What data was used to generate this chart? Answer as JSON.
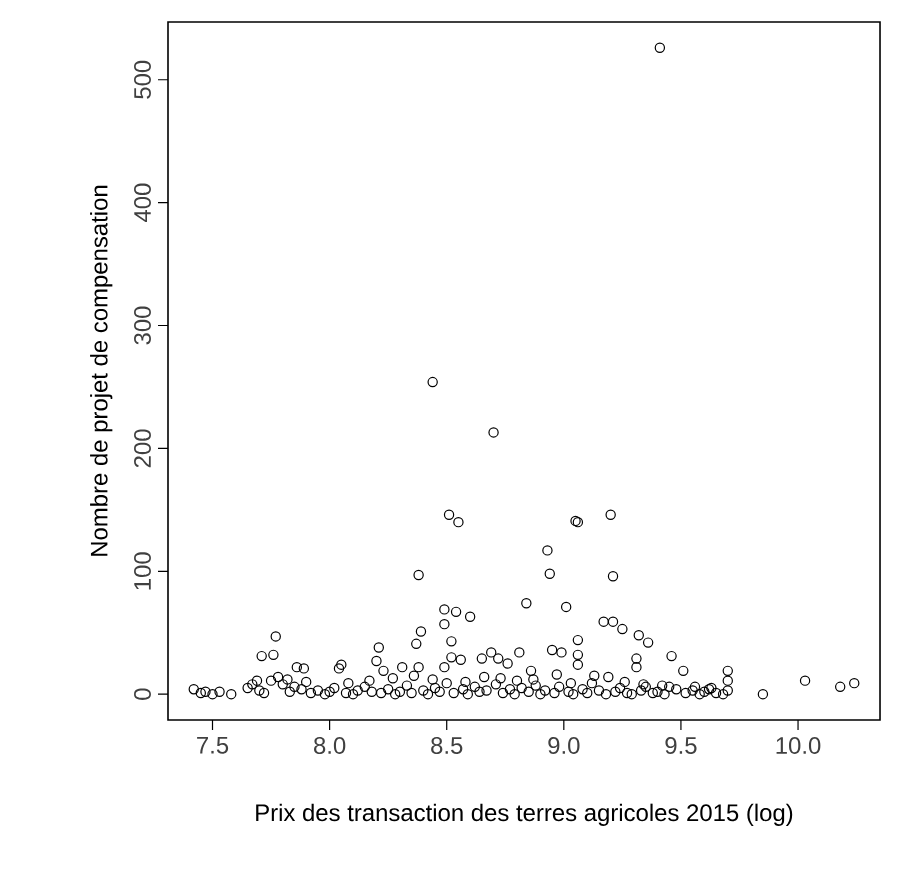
{
  "chart_data": {
    "type": "scatter",
    "xlabel": "Prix des transaction des terres agricoles 2015 (log)",
    "ylabel": "Nombre de projet de compensation",
    "marker": "circle",
    "xlim": [
      7.31,
      10.35
    ],
    "ylim": [
      -21,
      547
    ],
    "xticks": [
      7.5,
      {
        "value": 8,
        "label": "8.0"
      },
      8.5,
      {
        "value": 9,
        "label": "9.0"
      },
      9.5,
      {
        "value": 10,
        "label": "10.0"
      }
    ],
    "yticks": [
      0,
      100,
      200,
      300,
      400,
      500
    ],
    "series": [
      {
        "color": "#000000",
        "x": [
          9.41,
          8.44,
          8.7,
          8.51,
          8.55,
          8.38,
          9.05,
          9.06,
          9.2,
          9.21,
          8.93,
          8.94,
          8.84,
          9.01,
          8.49,
          8.54,
          8.6,
          8.49,
          9.17,
          9.21,
          9.25,
          9.32,
          9.36,
          9.46,
          9.51,
          7.77,
          7.71,
          7.76,
          8.21,
          8.2,
          8.23,
          8.37,
          8.39,
          8.52,
          8.52,
          8.56,
          8.69,
          8.65,
          8.72,
          8.76,
          8.81,
          8.95,
          8.99,
          9.06,
          9.06,
          9.06,
          9.31,
          9.31,
          8.05,
          8.04,
          8.31,
          8.38,
          7.86,
          7.89,
          10.03,
          10.18,
          10.24,
          9.85,
          9.7,
          9.7,
          7.42,
          7.47,
          7.53,
          7.58,
          7.67,
          7.69,
          7.75,
          8.49,
          8.86,
          9.45,
          7.45,
          7.5,
          7.65,
          7.7,
          7.72,
          7.8,
          7.83,
          7.85,
          7.88,
          7.92,
          7.95,
          7.98,
          8.0,
          8.02,
          8.07,
          8.1,
          8.12,
          8.15,
          8.18,
          8.22,
          8.25,
          8.28,
          8.3,
          8.33,
          8.35,
          8.4,
          8.42,
          8.45,
          8.47,
          8.5,
          8.53,
          8.57,
          8.59,
          8.62,
          8.64,
          8.67,
          8.71,
          8.74,
          8.77,
          8.79,
          8.82,
          8.85,
          8.88,
          8.9,
          8.92,
          8.96,
          8.98,
          9.02,
          9.04,
          9.08,
          9.1,
          9.12,
          9.15,
          9.18,
          9.22,
          9.24,
          9.27,
          9.29,
          9.33,
          9.35,
          9.38,
          9.4,
          9.43,
          9.48,
          9.52,
          9.55,
          9.58,
          9.6,
          9.63,
          9.65,
          9.68,
          9.7,
          7.78,
          7.82,
          7.9,
          8.08,
          8.17,
          8.27,
          8.36,
          8.44,
          8.58,
          8.66,
          8.73,
          8.8,
          8.87,
          8.97,
          9.03,
          9.13,
          9.19,
          9.26,
          9.34,
          9.42,
          9.56,
          9.62
        ],
        "values": [
          526,
          254,
          213,
          146,
          140,
          97,
          141,
          140,
          146,
          96,
          117,
          98,
          74,
          71,
          69,
          67,
          63,
          57,
          59,
          59,
          53,
          48,
          42,
          31,
          19,
          47,
          31,
          32,
          38,
          27,
          19,
          41,
          51,
          43,
          30,
          28,
          34,
          29,
          29,
          25,
          34,
          36,
          34,
          44,
          32,
          24,
          29,
          22,
          24,
          21,
          22,
          22,
          22,
          21,
          11,
          6,
          9,
          0,
          19,
          11,
          4,
          2,
          2,
          0,
          8,
          11,
          11,
          22,
          19,
          6,
          1,
          0,
          5,
          3,
          1,
          8,
          2,
          6,
          4,
          1,
          3,
          0,
          2,
          5,
          1,
          0,
          3,
          6,
          2,
          1,
          4,
          0,
          2,
          7,
          1,
          3,
          0,
          5,
          2,
          9,
          1,
          4,
          0,
          6,
          2,
          3,
          8,
          1,
          4,
          0,
          5,
          2,
          7,
          0,
          3,
          1,
          6,
          2,
          0,
          4,
          1,
          9,
          3,
          0,
          2,
          5,
          1,
          0,
          3,
          6,
          1,
          2,
          0,
          4,
          1,
          3,
          0,
          2,
          5,
          1,
          0,
          3,
          14,
          12,
          10,
          9,
          11,
          13,
          15,
          12,
          10,
          14,
          13,
          11,
          12,
          16,
          9,
          15,
          14,
          10,
          8,
          7,
          6,
          4
        ]
      }
    ]
  }
}
